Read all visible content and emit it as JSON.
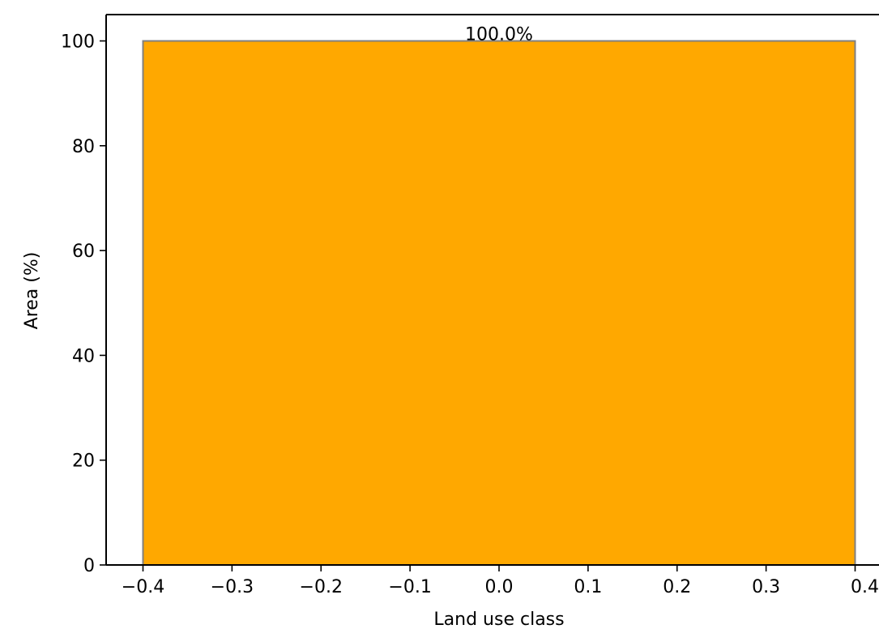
{
  "chart_data": {
    "type": "bar",
    "categories": [
      "0"
    ],
    "values": [
      100.0
    ],
    "data_labels": [
      "100.0%"
    ],
    "bar_span": [
      -0.4,
      0.4
    ],
    "title": "",
    "xlabel": "Land use class",
    "ylabel": "Area (%)",
    "xlim": [
      -0.4,
      0.4
    ],
    "ylim": [
      0,
      100
    ],
    "xticks": [
      -0.4,
      -0.3,
      -0.2,
      -0.1,
      0.0,
      0.1,
      0.2,
      0.3,
      0.4
    ],
    "xtick_labels": [
      "−0.4",
      "−0.3",
      "−0.2",
      "−0.1",
      "0.0",
      "0.1",
      "0.2",
      "0.3",
      "0.4"
    ],
    "yticks": [
      0,
      20,
      40,
      60,
      80,
      100
    ],
    "ytick_labels": [
      "0",
      "20",
      "40",
      "60",
      "80",
      "100"
    ],
    "grid": false,
    "legend": "none",
    "colors": {
      "bar_fill": "#FFA800",
      "bar_edge": "#808080",
      "axis": "#000000"
    }
  }
}
